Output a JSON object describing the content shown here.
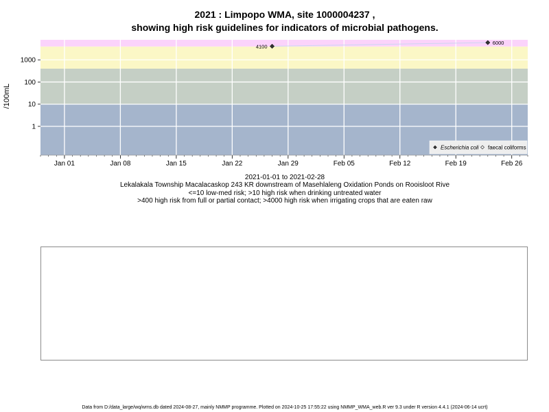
{
  "title_line1": "2021 : Limpopo WMA, site 1000004237 ,",
  "title_line2": "showing high risk guidelines for indicators of microbial pathogens.",
  "subtitle_lines": [
    "2021-01-01 to 2021-02-28",
    "Lekalakala Township Macalacaskop 243 KR downstream of Masehlaleng Oxidation Ponds on Rooisloot Rive",
    "<=10 low-med risk; >10 high risk when drinking untreated water",
    ">400 high risk from full or partial contact; >4000 high risk when irrigating crops that are eaten raw"
  ],
  "footer": "Data from D:/data_large/wq/wms.db dated 2024-08-27, mainly NMMP programme. Plotted on 2024-10-25 17:55:22 using NMMP_WMA_web.R ver 9.3 under R version 4.4.1 (2024-06-14 ucrt)",
  "chart_data": {
    "type": "scatter",
    "ylabel": "/100mL",
    "y_scale": "log10",
    "ylim": [
      0.05,
      8000
    ],
    "xlim": [
      "2020-12-29",
      "2021-02-28"
    ],
    "x_ticks": [
      {
        "date": "2021-01-01",
        "label": "Jan 01"
      },
      {
        "date": "2021-01-08",
        "label": "Jan 08"
      },
      {
        "date": "2021-01-15",
        "label": "Jan 15"
      },
      {
        "date": "2021-01-22",
        "label": "Jan 22"
      },
      {
        "date": "2021-01-29",
        "label": "Jan 29"
      },
      {
        "date": "2021-02-05",
        "label": "Feb 05"
      },
      {
        "date": "2021-02-12",
        "label": "Feb 12"
      },
      {
        "date": "2021-02-19",
        "label": "Feb 19"
      },
      {
        "date": "2021-02-26",
        "label": "Feb 26"
      }
    ],
    "y_ticks": [
      {
        "value": 1,
        "label": "1"
      },
      {
        "value": 10,
        "label": "10"
      },
      {
        "value": 100,
        "label": "100"
      },
      {
        "value": 1000,
        "label": "1000"
      }
    ],
    "bands": [
      {
        "from": 0.05,
        "to": 10,
        "color": "#a5b5cc"
      },
      {
        "from": 10,
        "to": 400,
        "color": "#c5cfc5"
      },
      {
        "from": 400,
        "to": 4000,
        "color": "#fbf7c6"
      },
      {
        "from": 4000,
        "to": 8000,
        "color": "#fbd3fb"
      }
    ],
    "grid": true,
    "legend_position": "bottom-right",
    "series": [
      {
        "name": "Escherichia coli",
        "marker": "filled-diamond",
        "color": "#333333",
        "points": [
          {
            "x": "2021-01-27",
            "y": 4100,
            "label": "4100"
          },
          {
            "x": "2021-02-23",
            "y": 6000,
            "label": "6000"
          }
        ]
      },
      {
        "name": "faecal coliforms",
        "marker": "open-diamond",
        "color": "#333333",
        "points": []
      }
    ]
  }
}
